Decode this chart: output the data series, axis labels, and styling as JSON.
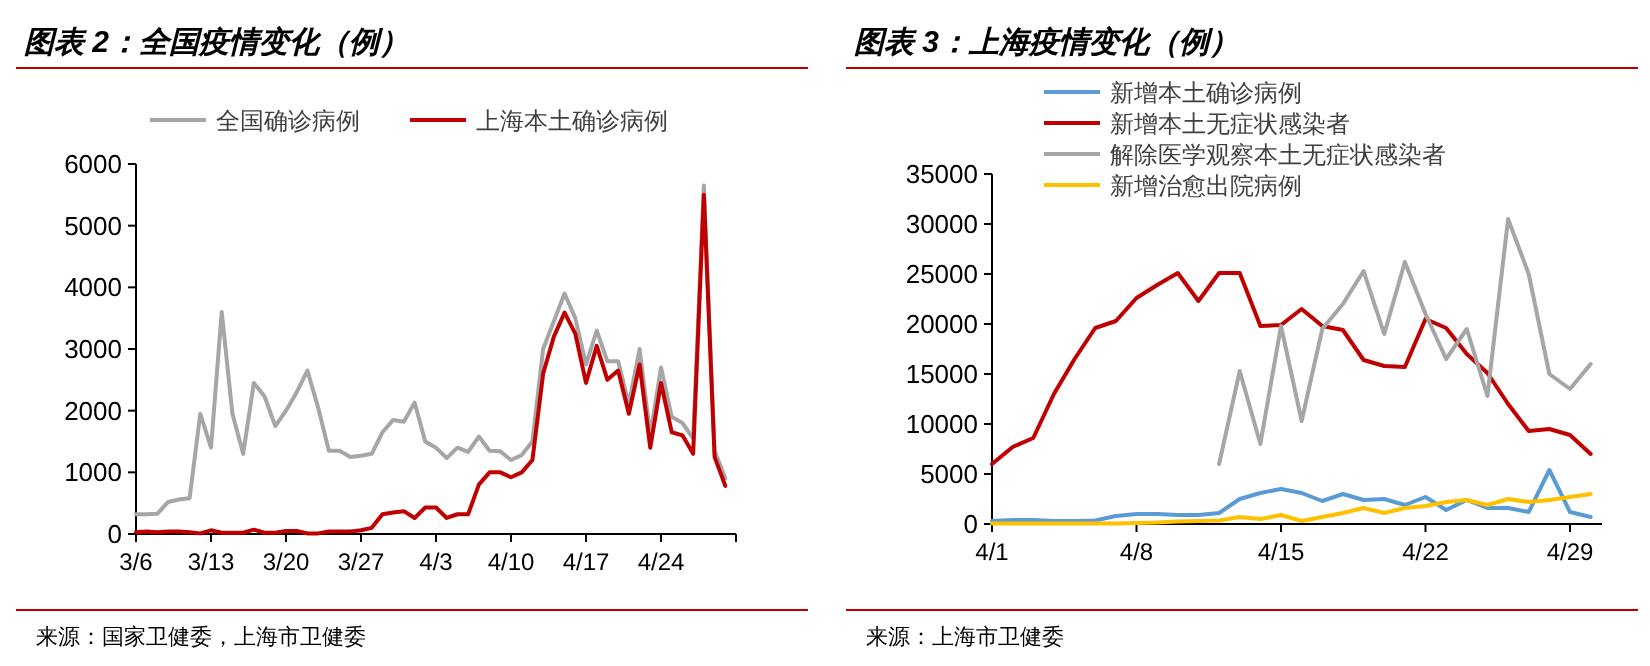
{
  "chart_data": [
    {
      "type": "line",
      "title": "图表 2：全国疫情变化（例）",
      "legend": "top",
      "marker": "none",
      "line_style": "solid",
      "grid": false,
      "categories": [
        "3/6",
        null,
        null,
        null,
        null,
        null,
        null,
        "3/13",
        null,
        null,
        null,
        null,
        null,
        null,
        "3/20",
        null,
        null,
        null,
        null,
        null,
        null,
        "3/27",
        null,
        null,
        null,
        null,
        null,
        null,
        "4/3",
        null,
        null,
        null,
        null,
        null,
        null,
        "4/10",
        null,
        null,
        null,
        null,
        null,
        null,
        "4/17",
        null,
        null,
        null,
        null,
        null,
        null,
        "4/24",
        null,
        null,
        null,
        null,
        null,
        null
      ],
      "ylim": [
        0,
        6000
      ],
      "yticks": [
        0,
        1000,
        2000,
        3000,
        4000,
        5000,
        6000
      ],
      "series": [
        {
          "name": "全国确诊病例",
          "color": "#a6a6a6",
          "values": [
            320,
            320,
            330,
            520,
            560,
            580,
            1950,
            1400,
            3600,
            1950,
            1300,
            2450,
            2230,
            1750,
            2000,
            2300,
            2650,
            2050,
            1350,
            1350,
            1250,
            1270,
            1300,
            1650,
            1850,
            1820,
            2130,
            1500,
            1400,
            1230,
            1400,
            1330,
            1580,
            1350,
            1340,
            1200,
            1280,
            1500,
            3000,
            3450,
            3900,
            3500,
            2750,
            3300,
            2800,
            2800,
            2100,
            3000,
            1600,
            2700,
            1900,
            1800,
            1550,
            5650,
            1350,
            900
          ]
        },
        {
          "name": "上海本土确诊病例",
          "color": "#c00000",
          "values": [
            30,
            40,
            30,
            40,
            40,
            30,
            10,
            60,
            20,
            20,
            20,
            70,
            20,
            20,
            50,
            50,
            10,
            10,
            40,
            40,
            40,
            60,
            100,
            320,
            350,
            370,
            260,
            430,
            430,
            260,
            320,
            320,
            800,
            1000,
            1000,
            920,
            1000,
            1200,
            2600,
            3200,
            3590,
            3250,
            2450,
            3050,
            2500,
            2650,
            1950,
            2750,
            1400,
            2450,
            1650,
            1600,
            1300,
            5500,
            1250,
            780
          ]
        }
      ],
      "annotations": [
        "来源：国家卫健委，上海市卫健委"
      ]
    },
    {
      "type": "line",
      "title": "图表 3：上海疫情变化（例）",
      "legend": "top",
      "marker": "none",
      "line_style": "solid",
      "grid": false,
      "categories": [
        "4/1",
        null,
        null,
        null,
        null,
        null,
        null,
        "4/8",
        null,
        null,
        null,
        null,
        null,
        null,
        "4/15",
        null,
        null,
        null,
        null,
        null,
        null,
        "4/22",
        null,
        null,
        null,
        null,
        null,
        null,
        "4/29",
        null
      ],
      "ylim": [
        0,
        35000
      ],
      "yticks": [
        0,
        5000,
        10000,
        15000,
        20000,
        25000,
        30000,
        35000
      ],
      "series": [
        {
          "name": "新增本土确诊病例",
          "color": "#5b9bd5",
          "values": [
            300,
            400,
            400,
            300,
            300,
            350,
            800,
            1000,
            1000,
            900,
            900,
            1100,
            2500,
            3100,
            3500,
            3100,
            2300,
            3000,
            2400,
            2500,
            1900,
            2700,
            1400,
            2400,
            1600,
            1600,
            1200,
            5400,
            1200,
            700
          ]
        },
        {
          "name": "新增本土无症状感染者",
          "color": "#c00000",
          "values": [
            6000,
            7700,
            8600,
            13000,
            16500,
            19600,
            20300,
            22600,
            23900,
            25100,
            22300,
            25100,
            25100,
            19800,
            19900,
            21500,
            19800,
            19400,
            16400,
            15800,
            15700,
            20500,
            19600,
            17000,
            15100,
            12000,
            9300,
            9500,
            8900,
            7000
          ]
        },
        {
          "name": "解除医学观察本土无症状感染者",
          "color": "#a6a6a6",
          "values": [
            null,
            null,
            null,
            null,
            null,
            null,
            null,
            null,
            null,
            null,
            null,
            6000,
            15300,
            8000,
            19800,
            10300,
            19500,
            22000,
            25300,
            19000,
            26200,
            21000,
            16500,
            19500,
            12800,
            30500,
            25000,
            15000,
            13500,
            16000
          ]
        },
        {
          "name": "新增治愈出院病例",
          "color": "#ffc000",
          "values": [
            50,
            50,
            50,
            50,
            50,
            50,
            50,
            100,
            150,
            250,
            300,
            350,
            700,
            500,
            900,
            300,
            700,
            1100,
            1600,
            1100,
            1600,
            1800,
            2200,
            2400,
            1900,
            2500,
            2200,
            2400,
            2700,
            3000
          ]
        }
      ],
      "annotations": [
        "来源：上海市卫健委"
      ]
    }
  ]
}
